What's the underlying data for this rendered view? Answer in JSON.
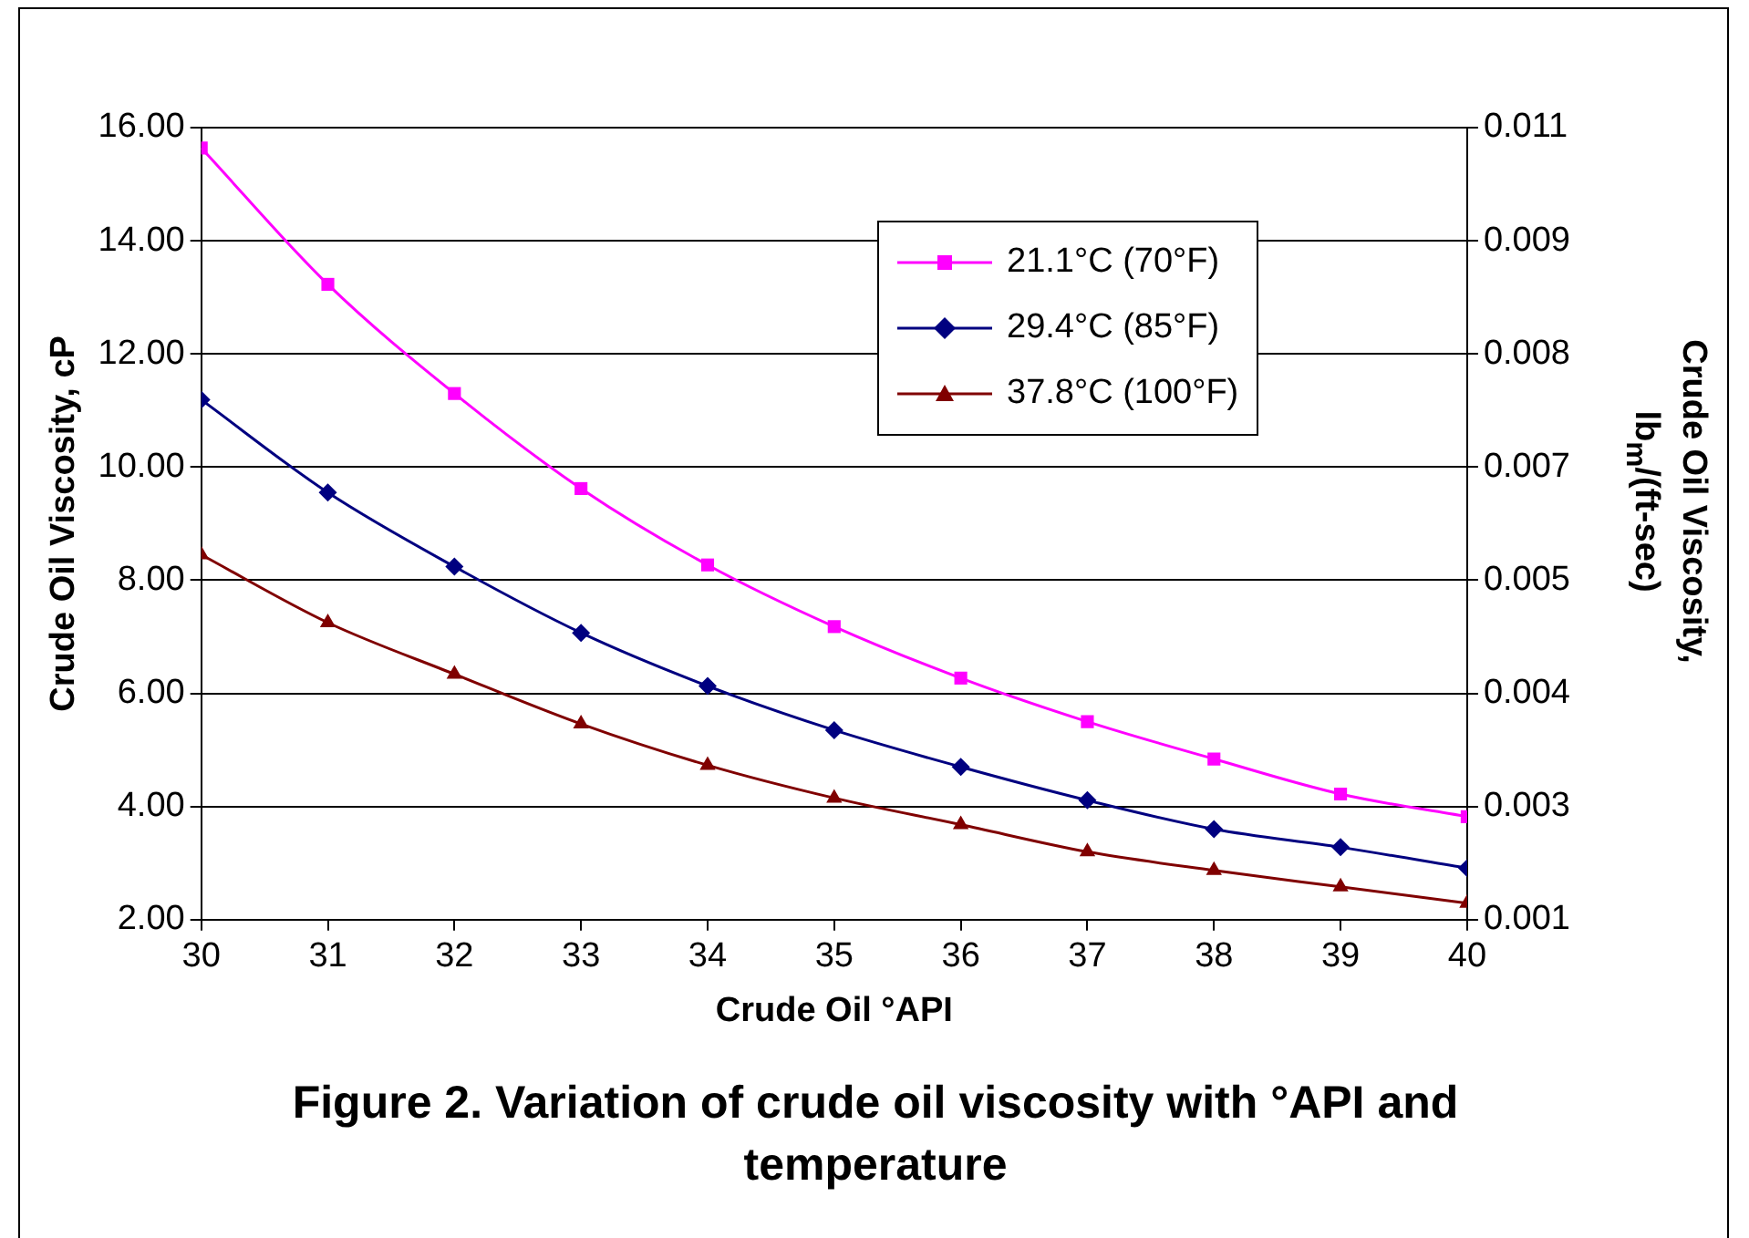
{
  "chart_data": {
    "type": "line",
    "title": "Figure 2. Variation of crude oil viscosity with °API and temperature",
    "xlabel": "Crude Oil °API",
    "ylabel": "Crude Oil Viscosity, cP",
    "y2label": "Crude Oil Viscosity, lb$_{m}$/(ft-sec)",
    "x": [
      30,
      31,
      32,
      33,
      34,
      35,
      36,
      37,
      38,
      39,
      40
    ],
    "series": [
      {
        "name": "21.1°C (70°F)",
        "color": "#ff00ff",
        "marker": "square",
        "values": [
          15.64,
          13.23,
          11.3,
          9.62,
          8.27,
          7.18,
          6.27,
          5.5,
          4.84,
          4.22,
          3.82
        ]
      },
      {
        "name": "29.4°C (85°F)",
        "color": "#000080",
        "marker": "diamond",
        "values": [
          11.19,
          9.55,
          8.24,
          7.07,
          6.13,
          5.35,
          4.7,
          4.11,
          3.6,
          3.28,
          2.91
        ]
      },
      {
        "name": "37.8°C (100°F)",
        "color": "#800000",
        "marker": "triangle",
        "values": [
          8.45,
          7.25,
          6.34,
          5.46,
          4.73,
          4.15,
          3.68,
          3.2,
          2.87,
          2.58,
          2.29
        ]
      }
    ],
    "xlim": [
      30,
      40
    ],
    "xticks": [
      30,
      31,
      32,
      33,
      34,
      35,
      36,
      37,
      38,
      39,
      40
    ],
    "ylim": [
      2,
      16
    ],
    "yticks": [
      {
        "value": 2,
        "label": "2.00"
      },
      {
        "value": 4,
        "label": "4.00"
      },
      {
        "value": 6,
        "label": "6.00"
      },
      {
        "value": 8,
        "label": "8.00"
      },
      {
        "value": 10,
        "label": "10.00"
      },
      {
        "value": 12,
        "label": "12.00"
      },
      {
        "value": 14,
        "label": "14.00"
      },
      {
        "value": 16,
        "label": "16.00"
      }
    ],
    "y2lim": [
      0.001344,
      0.010752
    ],
    "y2ticks": [
      {
        "value": 0.001344,
        "label": "0.001"
      },
      {
        "value": 0.002688,
        "label": "0.003"
      },
      {
        "value": 0.004032,
        "label": "0.004"
      },
      {
        "value": 0.005376,
        "label": "0.005"
      },
      {
        "value": 0.00672,
        "label": "0.007"
      },
      {
        "value": 0.008064,
        "label": "0.008"
      },
      {
        "value": 0.009408,
        "label": "0.009"
      },
      {
        "value": 0.010752,
        "label": "0.011"
      }
    ],
    "grid": "y",
    "legend": "top right",
    "line_style": "solid"
  }
}
